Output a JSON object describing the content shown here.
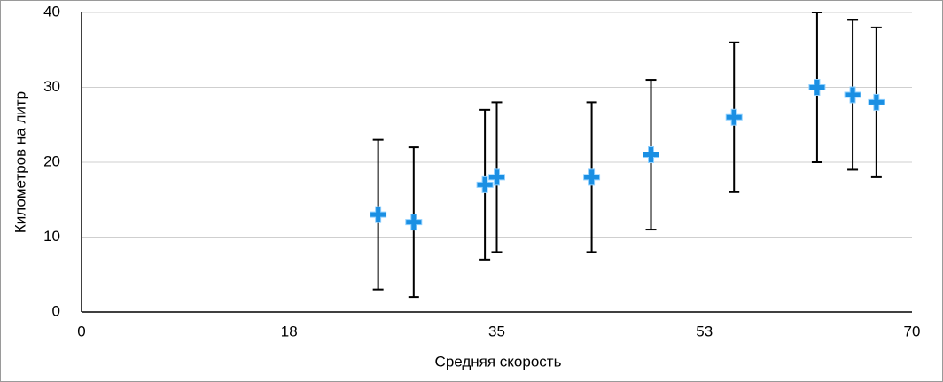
{
  "chart_data": {
    "type": "scatter",
    "x_label": "Средняя скорость",
    "y_label": "Километров на литр",
    "series": [
      {
        "name": null,
        "color": "#1a8fe3",
        "x": [
          25,
          28,
          34,
          35,
          43,
          48,
          55,
          62,
          65,
          67
        ],
        "values": [
          13,
          12,
          17,
          18,
          18,
          21,
          26,
          30,
          29,
          28
        ],
        "errors": [
          10,
          10,
          10,
          10,
          10,
          10,
          10,
          10,
          10,
          10
        ]
      }
    ],
    "xlim": [
      0,
      70
    ],
    "xticks": [
      0,
      {
        "value": 17.5,
        "label": "18"
      },
      35,
      {
        "value": 52.5,
        "label": "53"
      },
      70
    ],
    "ylim": [
      0,
      40
    ],
    "yticks": [
      0,
      10,
      20,
      30,
      40
    ],
    "grid": true
  }
}
